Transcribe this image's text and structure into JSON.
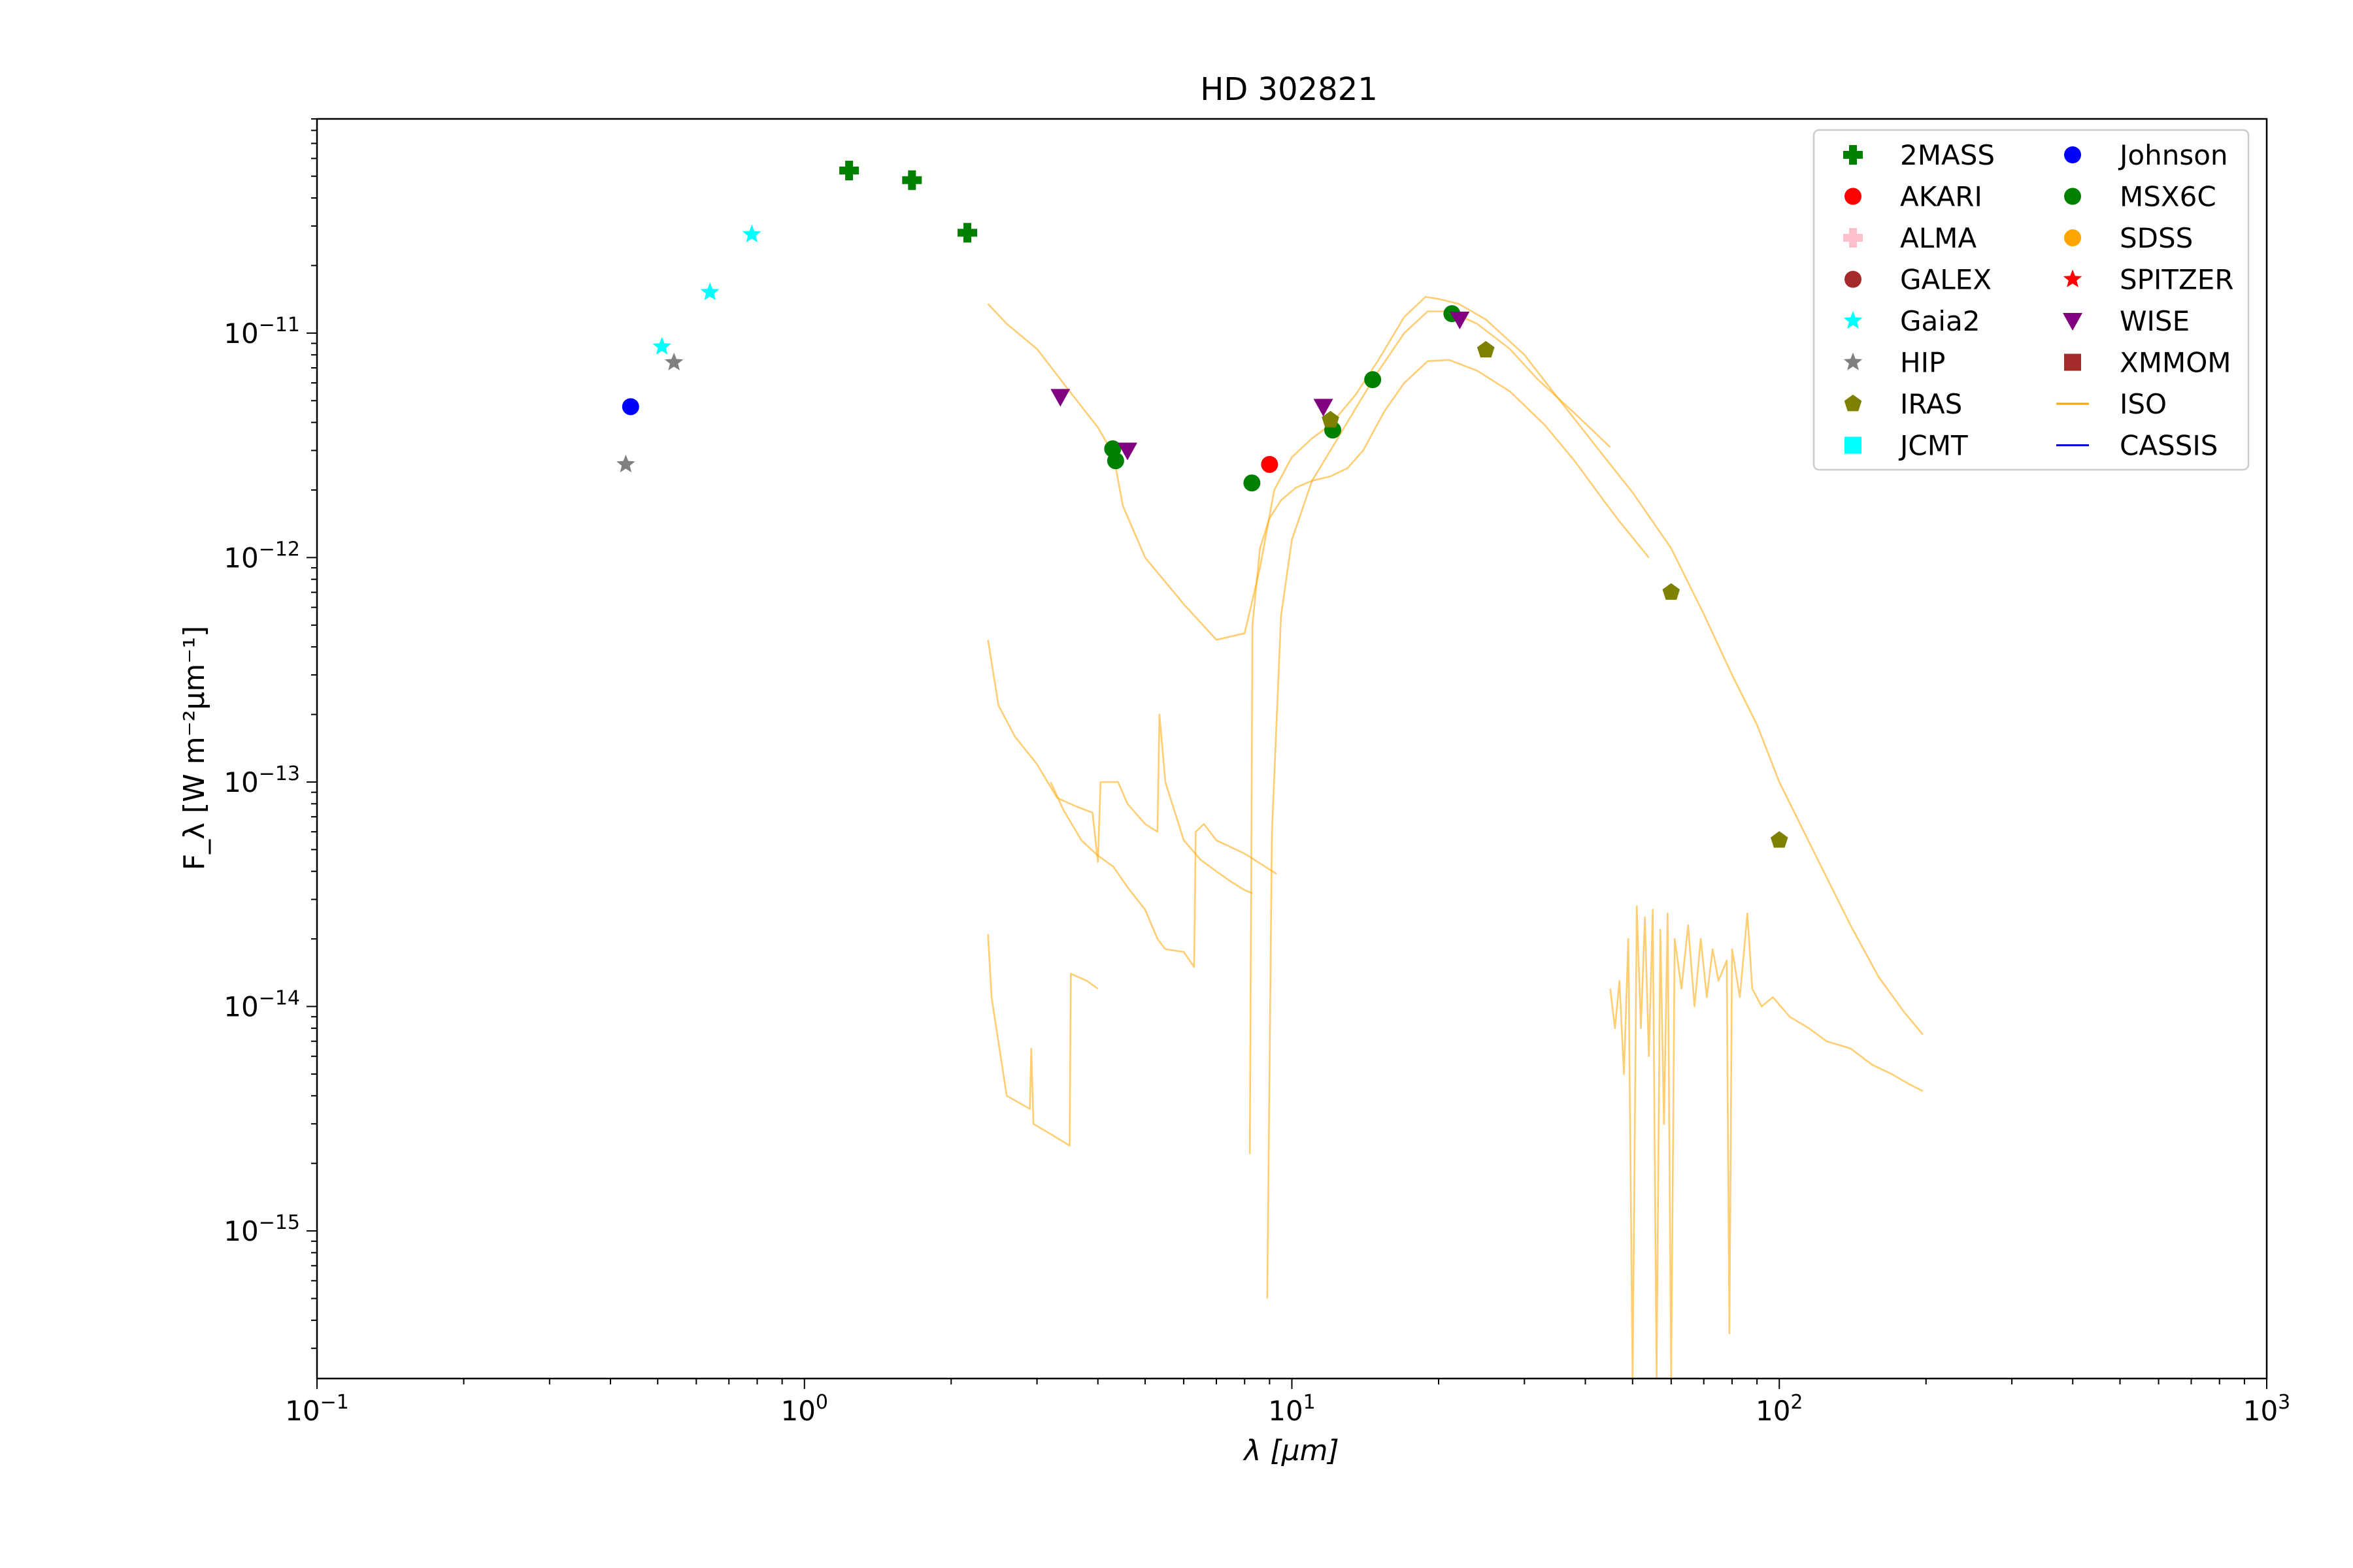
{
  "chart_data": {
    "type": "scatter",
    "title": "HD 302821",
    "xlabel": "λ [μm]",
    "ylabel": "F_λ [W m⁻²μm⁻¹]",
    "x_scale": "log",
    "y_scale": "log",
    "xlim": [
      0.1,
      1000
    ],
    "ylim": [
      2.2e-16,
      9e-11
    ],
    "x_ticks": [
      {
        "value": 0.1,
        "base": "10",
        "exp": "−1"
      },
      {
        "value": 1,
        "base": "10",
        "exp": "0"
      },
      {
        "value": 10,
        "base": "10",
        "exp": "1"
      },
      {
        "value": 100,
        "base": "10",
        "exp": "2"
      },
      {
        "value": 1000,
        "base": "10",
        "exp": "3"
      }
    ],
    "y_ticks": [
      {
        "value": 1e-15,
        "base": "10",
        "exp": "−15"
      },
      {
        "value": 1e-14,
        "base": "10",
        "exp": "−14"
      },
      {
        "value": 1e-13,
        "base": "10",
        "exp": "−13"
      },
      {
        "value": 1e-12,
        "base": "10",
        "exp": "−12"
      },
      {
        "value": 1e-11,
        "base": "10",
        "exp": "−11"
      }
    ],
    "grid": false,
    "legend_position": "top-right",
    "legend": [
      {
        "name": "2MASS",
        "marker": "plus",
        "color": "#008000"
      },
      {
        "name": "Johnson",
        "marker": "circle",
        "color": "#0000ff"
      },
      {
        "name": "AKARI",
        "marker": "circle",
        "color": "#ff0000"
      },
      {
        "name": "MSX6C",
        "marker": "circle",
        "color": "#008000"
      },
      {
        "name": "ALMA",
        "marker": "plus",
        "color": "#ffc0cb"
      },
      {
        "name": "SDSS",
        "marker": "circle",
        "color": "#ffa500"
      },
      {
        "name": "GALEX",
        "marker": "circle",
        "color": "#a52a2a"
      },
      {
        "name": "SPITZER",
        "marker": "star",
        "color": "#ff0000"
      },
      {
        "name": "Gaia2",
        "marker": "star",
        "color": "#00ffff"
      },
      {
        "name": "WISE",
        "marker": "triangle-down",
        "color": "#800080"
      },
      {
        "name": "HIP",
        "marker": "star",
        "color": "#808080"
      },
      {
        "name": "XMMOM",
        "marker": "square",
        "color": "#a52a2a"
      },
      {
        "name": "IRAS",
        "marker": "pentagon",
        "color": "#808000"
      },
      {
        "name": "ISO",
        "marker": "line",
        "color": "#ffa500"
      },
      {
        "name": "JCMT",
        "marker": "square",
        "color": "#00ffff"
      },
      {
        "name": "CASSIS",
        "marker": "line",
        "color": "#0000cd"
      }
    ],
    "series": [
      {
        "name": "2MASS",
        "marker": "plus",
        "color": "#008000",
        "points": [
          [
            1.235,
            5.3e-11
          ],
          [
            1.662,
            4.8e-11
          ],
          [
            2.159,
            2.8e-11
          ]
        ]
      },
      {
        "name": "Johnson",
        "marker": "circle",
        "color": "#0000ff",
        "points": [
          [
            0.44,
            4.7e-12
          ]
        ]
      },
      {
        "name": "AKARI",
        "marker": "circle",
        "color": "#ff0000",
        "points": [
          [
            9.0,
            2.6e-12
          ]
        ]
      },
      {
        "name": "MSX6C",
        "marker": "circle",
        "color": "#008000",
        "points": [
          [
            4.29,
            3.05e-12
          ],
          [
            4.35,
            2.7e-12
          ],
          [
            8.28,
            2.15e-12
          ],
          [
            12.13,
            3.7e-12
          ],
          [
            14.65,
            6.2e-12
          ],
          [
            21.3,
            1.22e-11
          ]
        ]
      },
      {
        "name": "Gaia2",
        "marker": "star",
        "color": "#00ffff",
        "points": [
          [
            0.51,
            8.7e-12
          ],
          [
            0.64,
            1.52e-11
          ],
          [
            0.78,
            2.75e-11
          ]
        ]
      },
      {
        "name": "HIP",
        "marker": "star",
        "color": "#808080",
        "points": [
          [
            0.43,
            2.6e-12
          ],
          [
            0.54,
            7.4e-12
          ]
        ]
      },
      {
        "name": "WISE",
        "marker": "triangle-down",
        "color": "#800080",
        "points": [
          [
            3.35,
            5.2e-12
          ],
          [
            4.6,
            3e-12
          ],
          [
            11.6,
            4.7e-12
          ],
          [
            22.1,
            1.15e-11
          ]
        ]
      },
      {
        "name": "IRAS",
        "marker": "pentagon",
        "color": "#808000",
        "points": [
          [
            12.0,
            4.1e-12
          ],
          [
            25.0,
            8.4e-12
          ],
          [
            60.0,
            7e-13
          ],
          [
            100.0,
            5.5e-14
          ]
        ]
      }
    ],
    "iso_spectra": [
      {
        "name": "ISO-1",
        "color": "#ffa500",
        "points": [
          [
            2.38,
            1.35e-11
          ],
          [
            2.6,
            1.1e-11
          ],
          [
            3.0,
            8.5e-12
          ],
          [
            3.5,
            5.5e-12
          ],
          [
            4.0,
            3.8e-12
          ],
          [
            4.3,
            2.9e-12
          ],
          [
            4.5,
            1.7e-12
          ],
          [
            5.0,
            1e-12
          ],
          [
            6.0,
            6.2e-13
          ],
          [
            7.0,
            4.3e-13
          ],
          [
            8.0,
            4.6e-13
          ],
          [
            8.6,
            9e-13
          ],
          [
            9.2,
            2e-12
          ],
          [
            10.0,
            2.8e-12
          ],
          [
            11.0,
            3.4e-12
          ],
          [
            12.0,
            3.9e-12
          ],
          [
            13.5,
            5.3e-12
          ],
          [
            15.0,
            7.5e-12
          ],
          [
            17.0,
            1.18e-11
          ],
          [
            18.8,
            1.45e-11
          ],
          [
            20.0,
            1.42e-11
          ],
          [
            22.0,
            1.35e-11
          ],
          [
            25.0,
            1.15e-11
          ],
          [
            30.0,
            8e-12
          ],
          [
            35.0,
            5.2e-12
          ],
          [
            40.0,
            3.6e-12
          ],
          [
            45.0,
            2.6e-12
          ],
          [
            50.0,
            1.95e-12
          ],
          [
            60.0,
            1.1e-12
          ],
          [
            70.0,
            5.6e-13
          ],
          [
            80.0,
            3e-13
          ],
          [
            90.0,
            1.8e-13
          ],
          [
            100.0,
            1e-13
          ],
          [
            120.0,
            4.5e-14
          ],
          [
            140.0,
            2.3e-14
          ],
          [
            160.0,
            1.35e-14
          ],
          [
            180.0,
            9.5e-15
          ],
          [
            197.0,
            7.5e-15
          ]
        ]
      },
      {
        "name": "ISO-2",
        "color": "#ffa500",
        "points": [
          [
            8.9,
            5e-16
          ],
          [
            9.1,
            6e-14
          ],
          [
            9.5,
            5.5e-13
          ],
          [
            10.0,
            1.2e-12
          ],
          [
            11.0,
            2.2e-12
          ],
          [
            12.0,
            3e-12
          ],
          [
            13.5,
            4.6e-12
          ],
          [
            15.0,
            6.7e-12
          ],
          [
            17.0,
            1e-11
          ],
          [
            19.0,
            1.25e-11
          ],
          [
            21.0,
            1.25e-11
          ],
          [
            24.0,
            1.1e-11
          ],
          [
            28.0,
            8.5e-12
          ],
          [
            32.0,
            6.2e-12
          ],
          [
            38.0,
            4.4e-12
          ],
          [
            45.0,
            3.1e-12
          ]
        ]
      },
      {
        "name": "ISO-3",
        "color": "#ffa500",
        "points": [
          [
            8.2,
            2.2e-15
          ],
          [
            8.3,
            5e-13
          ],
          [
            8.6,
            1.1e-12
          ],
          [
            9.0,
            1.5e-12
          ],
          [
            9.5,
            1.8e-12
          ],
          [
            10.2,
            2.05e-12
          ],
          [
            11.0,
            2.2e-12
          ],
          [
            12.0,
            2.3e-12
          ],
          [
            13.0,
            2.5e-12
          ],
          [
            14.0,
            3e-12
          ],
          [
            15.5,
            4.5e-12
          ],
          [
            17.0,
            6e-12
          ],
          [
            19.0,
            7.5e-12
          ],
          [
            21.0,
            7.6e-12
          ],
          [
            24.0,
            6.8e-12
          ],
          [
            28.0,
            5.5e-12
          ],
          [
            33.0,
            3.9e-12
          ],
          [
            38.0,
            2.7e-12
          ],
          [
            44.0,
            1.75e-12
          ],
          [
            47.0,
            1.45e-12
          ],
          [
            54.0,
            1e-12
          ]
        ]
      },
      {
        "name": "ISO-4",
        "color": "#ffa500",
        "points": [
          [
            2.38,
            4.3e-13
          ],
          [
            2.5,
            2.2e-13
          ],
          [
            2.7,
            1.6e-13
          ],
          [
            3.0,
            1.2e-13
          ],
          [
            3.3,
            8.5e-14
          ],
          [
            3.6,
            7.8e-14
          ],
          [
            3.9,
            7.3e-14
          ],
          [
            4.0,
            4.4e-14
          ],
          [
            4.05,
            1e-13
          ],
          [
            4.4,
            1e-13
          ],
          [
            4.6,
            8e-14
          ],
          [
            5.0,
            6.5e-14
          ],
          [
            5.3,
            6e-14
          ],
          [
            5.35,
            2e-13
          ],
          [
            5.5,
            1e-13
          ],
          [
            6.0,
            5.5e-14
          ],
          [
            6.5,
            4.5e-14
          ],
          [
            7.0,
            4e-14
          ],
          [
            7.5,
            3.6e-14
          ],
          [
            8.0,
            3.3e-14
          ],
          [
            8.3,
            3.2e-14
          ]
        ]
      },
      {
        "name": "ISO-5",
        "color": "#ffa500",
        "points": [
          [
            3.2,
            1e-13
          ],
          [
            3.4,
            7.5e-14
          ],
          [
            3.7,
            5.5e-14
          ],
          [
            4.0,
            4.7e-14
          ],
          [
            4.3,
            4.2e-14
          ],
          [
            4.6,
            3.4e-14
          ],
          [
            5.0,
            2.7e-14
          ],
          [
            5.3,
            2e-14
          ],
          [
            5.5,
            1.8e-14
          ],
          [
            6.0,
            1.75e-14
          ],
          [
            6.3,
            1.5e-14
          ],
          [
            6.35,
            6e-14
          ],
          [
            6.6,
            6.5e-14
          ],
          [
            7.0,
            5.5e-14
          ],
          [
            8.0,
            4.8e-14
          ],
          [
            9.3,
            3.9e-14
          ]
        ]
      },
      {
        "name": "ISO-6",
        "color": "#ffa500",
        "points": [
          [
            2.38,
            2.1e-14
          ],
          [
            2.42,
            1.1e-14
          ],
          [
            2.6,
            4e-15
          ],
          [
            2.9,
            3.5e-15
          ],
          [
            2.92,
            6.5e-15
          ],
          [
            2.95,
            3e-15
          ],
          [
            3.2,
            2.7e-15
          ],
          [
            3.5,
            2.4e-15
          ],
          [
            3.52,
            1.4e-14
          ],
          [
            3.8,
            1.3e-14
          ],
          [
            4.0,
            1.2e-14
          ]
        ]
      },
      {
        "name": "ISO-7",
        "color": "#ffa500",
        "points": [
          [
            45.0,
            1.2e-14
          ],
          [
            46.0,
            8e-15
          ],
          [
            47.0,
            1.3e-14
          ],
          [
            48.0,
            5e-15
          ],
          [
            49.0,
            2e-14
          ],
          [
            50.0,
            2.2e-16
          ],
          [
            51.0,
            2.8e-14
          ],
          [
            52.0,
            8e-15
          ],
          [
            53.0,
            2.5e-14
          ],
          [
            54.0,
            6e-15
          ],
          [
            55.0,
            2.7e-14
          ],
          [
            56.0,
            2.2e-16
          ],
          [
            57.0,
            2.2e-14
          ],
          [
            58.0,
            3e-15
          ],
          [
            59.0,
            2.6e-14
          ],
          [
            60.0,
            2.2e-16
          ],
          [
            61.0,
            2e-14
          ],
          [
            63.0,
            1.2e-14
          ],
          [
            65.0,
            2.3e-14
          ],
          [
            67.0,
            1e-14
          ],
          [
            69.0,
            2e-14
          ],
          [
            71.0,
            1.1e-14
          ],
          [
            73.0,
            1.8e-14
          ],
          [
            75.0,
            1.3e-14
          ],
          [
            78.0,
            1.6e-14
          ],
          [
            79.0,
            3.5e-16
          ],
          [
            80.0,
            1.8e-14
          ],
          [
            83.0,
            1.1e-14
          ],
          [
            86.0,
            2.6e-14
          ],
          [
            88.0,
            1.2e-14
          ],
          [
            92.0,
            1e-14
          ],
          [
            97.0,
            1.1e-14
          ],
          [
            105.0,
            9e-15
          ],
          [
            115.0,
            8e-15
          ],
          [
            125.0,
            7e-15
          ],
          [
            140.0,
            6.5e-15
          ],
          [
            155.0,
            5.5e-15
          ],
          [
            170.0,
            5e-15
          ],
          [
            185.0,
            4.5e-15
          ],
          [
            197.0,
            4.2e-15
          ]
        ]
      }
    ]
  }
}
